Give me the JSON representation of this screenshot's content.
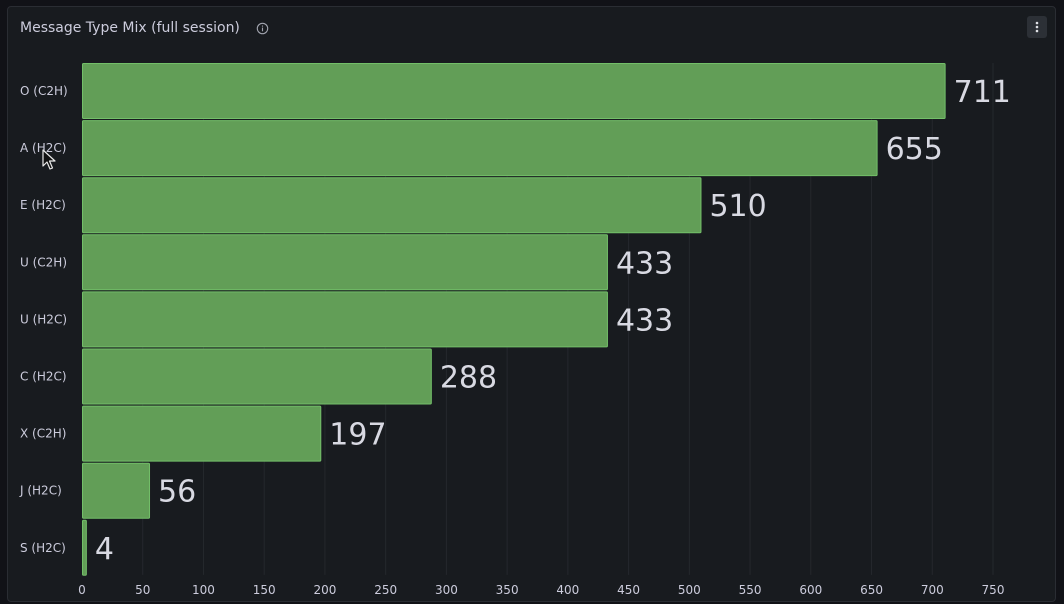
{
  "panel": {
    "title": "Message Type Mix (full session)",
    "icons": {
      "info": "info-icon",
      "menu": "vertical-ellipsis-icon",
      "cursor": "mouse-pointer-icon"
    }
  },
  "colors": {
    "bar_fill": "#629e57",
    "bar_stroke": "#73bf69",
    "grid": "#25282d",
    "tick_text": "#ccccdc",
    "value_text": "#d8d9e2",
    "background": "#181b1f"
  },
  "chart_data": {
    "type": "bar",
    "orientation": "horizontal",
    "title": "Message Type Mix (full session)",
    "xlabel": "",
    "ylabel": "",
    "categories": [
      "O (C2H)",
      "A (H2C)",
      "E (H2C)",
      "U (C2H)",
      "U (H2C)",
      "C (H2C)",
      "X (C2H)",
      "J (H2C)",
      "S (H2C)"
    ],
    "values": [
      711,
      655,
      510,
      433,
      433,
      288,
      197,
      56,
      4
    ],
    "xlim": [
      0,
      750
    ],
    "xticks": [
      0,
      50,
      100,
      150,
      200,
      250,
      300,
      350,
      400,
      450,
      500,
      550,
      600,
      650,
      700,
      750
    ],
    "grid": true,
    "legend": "none"
  }
}
